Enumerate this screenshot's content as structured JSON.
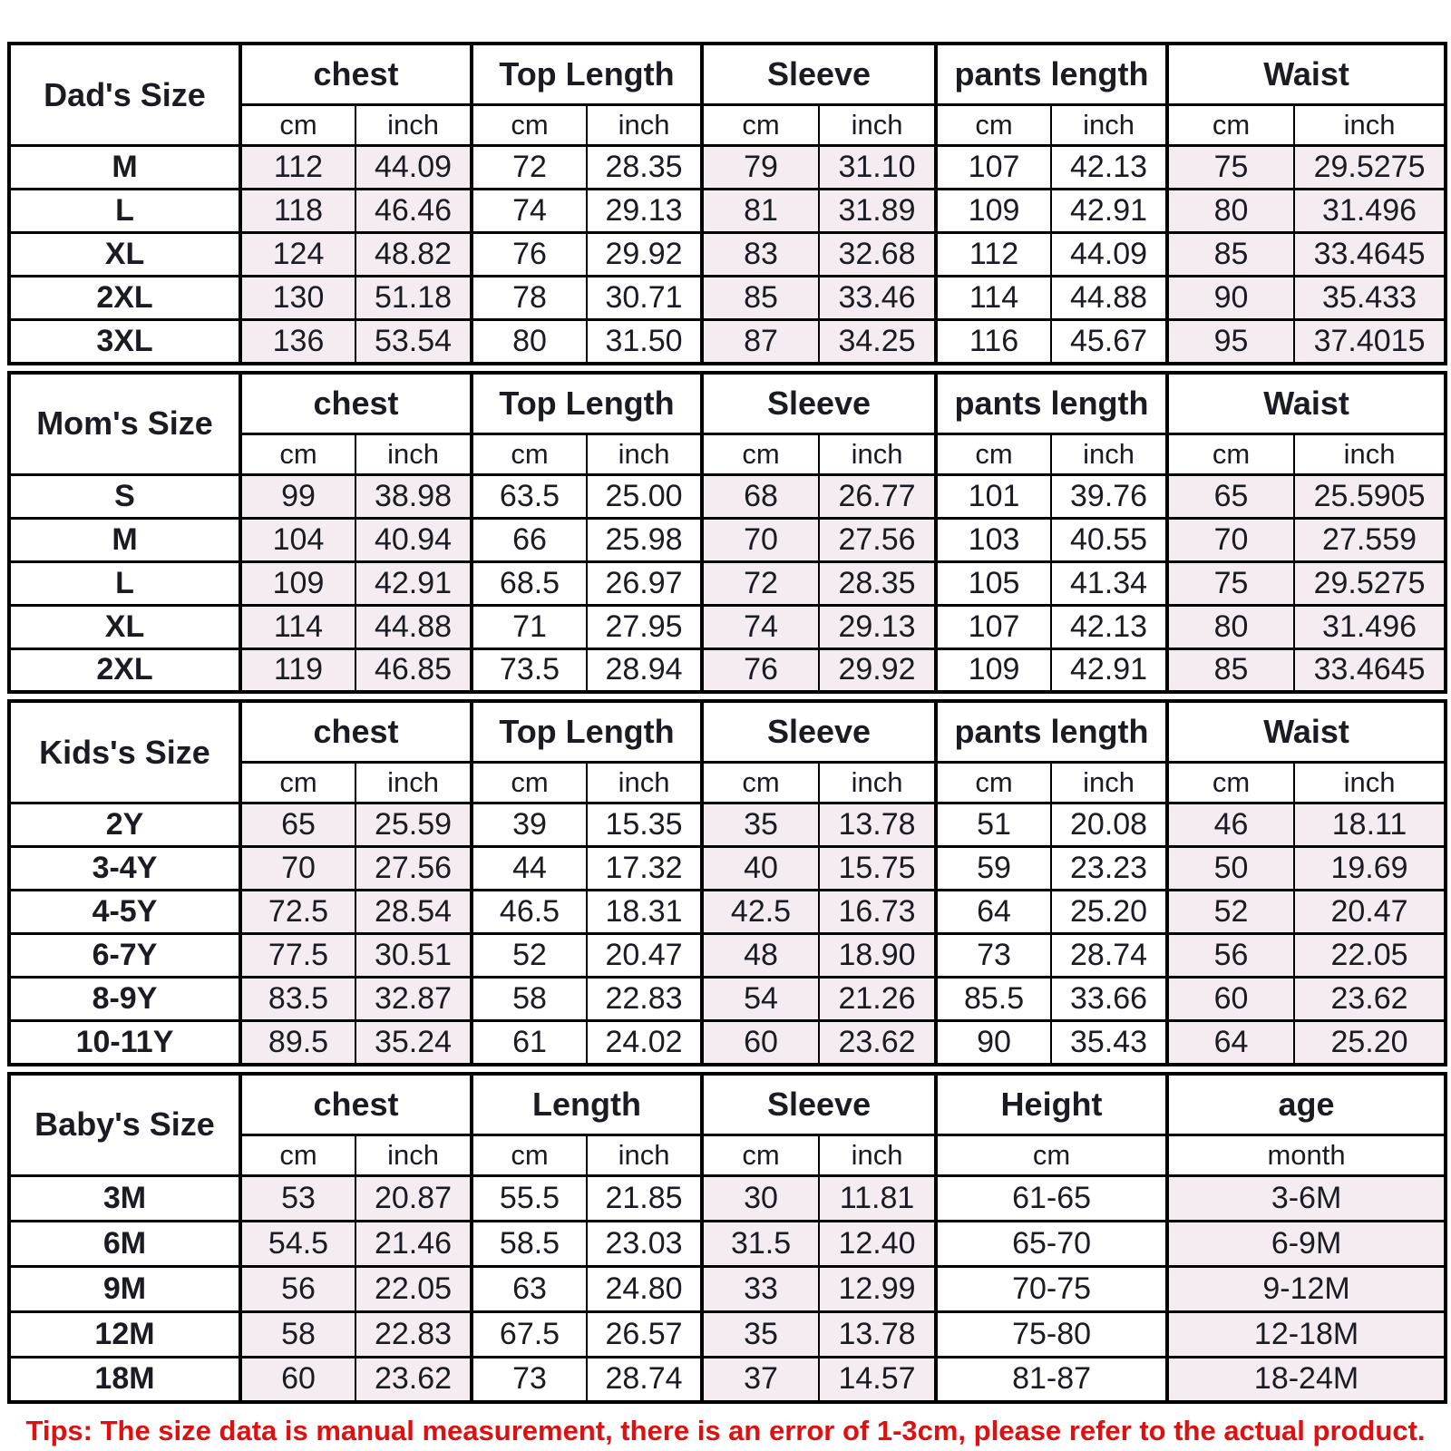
{
  "colors": {
    "shade_pink": "#f5ecf2",
    "text": "#1b1b24",
    "border": "#000000",
    "tips_red": "#dd1111"
  },
  "footer": {
    "tips": "Tips: The size data is manual measurement, there is an error of 1-3cm, please refer to the actual product."
  },
  "chart_data": [
    {
      "type": "table",
      "title": "Dad's Size",
      "column_groups": [
        {
          "name": "chest",
          "units": [
            "cm",
            "inch"
          ]
        },
        {
          "name": "Top Length",
          "units": [
            "cm",
            "inch"
          ]
        },
        {
          "name": "Sleeve",
          "units": [
            "cm",
            "inch"
          ]
        },
        {
          "name": "pants length",
          "units": [
            "cm",
            "inch"
          ]
        },
        {
          "name": "Waist",
          "units": [
            "cm",
            "inch"
          ]
        }
      ],
      "rows": [
        {
          "size": "M",
          "values": [
            "112",
            "44.09",
            "72",
            "28.35",
            "79",
            "31.10",
            "107",
            "42.13",
            "75",
            "29.5275"
          ]
        },
        {
          "size": "L",
          "values": [
            "118",
            "46.46",
            "74",
            "29.13",
            "81",
            "31.89",
            "109",
            "42.91",
            "80",
            "31.496"
          ]
        },
        {
          "size": "XL",
          "values": [
            "124",
            "48.82",
            "76",
            "29.92",
            "83",
            "32.68",
            "112",
            "44.09",
            "85",
            "33.4645"
          ]
        },
        {
          "size": "2XL",
          "values": [
            "130",
            "51.18",
            "78",
            "30.71",
            "85",
            "33.46",
            "114",
            "44.88",
            "90",
            "35.433"
          ]
        },
        {
          "size": "3XL",
          "values": [
            "136",
            "53.54",
            "80",
            "31.50",
            "87",
            "34.25",
            "116",
            "45.67",
            "95",
            "37.4015"
          ]
        }
      ]
    },
    {
      "type": "table",
      "title": "Mom's Size",
      "column_groups": [
        {
          "name": "chest",
          "units": [
            "cm",
            "inch"
          ]
        },
        {
          "name": "Top Length",
          "units": [
            "cm",
            "inch"
          ]
        },
        {
          "name": "Sleeve",
          "units": [
            "cm",
            "inch"
          ]
        },
        {
          "name": "pants length",
          "units": [
            "cm",
            "inch"
          ]
        },
        {
          "name": "Waist",
          "units": [
            "cm",
            "inch"
          ]
        }
      ],
      "rows": [
        {
          "size": "S",
          "values": [
            "99",
            "38.98",
            "63.5",
            "25.00",
            "68",
            "26.77",
            "101",
            "39.76",
            "65",
            "25.5905"
          ]
        },
        {
          "size": "M",
          "values": [
            "104",
            "40.94",
            "66",
            "25.98",
            "70",
            "27.56",
            "103",
            "40.55",
            "70",
            "27.559"
          ]
        },
        {
          "size": "L",
          "values": [
            "109",
            "42.91",
            "68.5",
            "26.97",
            "72",
            "28.35",
            "105",
            "41.34",
            "75",
            "29.5275"
          ]
        },
        {
          "size": "XL",
          "values": [
            "114",
            "44.88",
            "71",
            "27.95",
            "74",
            "29.13",
            "107",
            "42.13",
            "80",
            "31.496"
          ]
        },
        {
          "size": "2XL",
          "values": [
            "119",
            "46.85",
            "73.5",
            "28.94",
            "76",
            "29.92",
            "109",
            "42.91",
            "85",
            "33.4645"
          ]
        }
      ]
    },
    {
      "type": "table",
      "title": "Kids's Size",
      "column_groups": [
        {
          "name": "chest",
          "units": [
            "cm",
            "inch"
          ]
        },
        {
          "name": "Top Length",
          "units": [
            "cm",
            "inch"
          ]
        },
        {
          "name": "Sleeve",
          "units": [
            "cm",
            "inch"
          ]
        },
        {
          "name": "pants length",
          "units": [
            "cm",
            "inch"
          ]
        },
        {
          "name": "Waist",
          "units": [
            "cm",
            "inch"
          ]
        }
      ],
      "rows": [
        {
          "size": "2Y",
          "values": [
            "65",
            "25.59",
            "39",
            "15.35",
            "35",
            "13.78",
            "51",
            "20.08",
            "46",
            "18.11"
          ]
        },
        {
          "size": "3-4Y",
          "values": [
            "70",
            "27.56",
            "44",
            "17.32",
            "40",
            "15.75",
            "59",
            "23.23",
            "50",
            "19.69"
          ]
        },
        {
          "size": "4-5Y",
          "values": [
            "72.5",
            "28.54",
            "46.5",
            "18.31",
            "42.5",
            "16.73",
            "64",
            "25.20",
            "52",
            "20.47"
          ]
        },
        {
          "size": "6-7Y",
          "values": [
            "77.5",
            "30.51",
            "52",
            "20.47",
            "48",
            "18.90",
            "73",
            "28.74",
            "56",
            "22.05"
          ]
        },
        {
          "size": "8-9Y",
          "values": [
            "83.5",
            "32.87",
            "58",
            "22.83",
            "54",
            "21.26",
            "85.5",
            "33.66",
            "60",
            "23.62"
          ]
        },
        {
          "size": "10-11Y",
          "values": [
            "89.5",
            "35.24",
            "61",
            "24.02",
            "60",
            "23.62",
            "90",
            "35.43",
            "64",
            "25.20"
          ]
        }
      ]
    },
    {
      "type": "table",
      "title": "Baby's Size",
      "column_groups": [
        {
          "name": "chest",
          "units": [
            "cm",
            "inch"
          ]
        },
        {
          "name": "Length",
          "units": [
            "cm",
            "inch"
          ]
        },
        {
          "name": "Sleeve",
          "units": [
            "cm",
            "inch"
          ]
        },
        {
          "name": "Height",
          "units": [
            "cm"
          ]
        },
        {
          "name": "age",
          "units": [
            "month"
          ]
        }
      ],
      "rows": [
        {
          "size": "3M",
          "values": [
            "53",
            "20.87",
            "55.5",
            "21.85",
            "30",
            "11.81",
            "61-65",
            "3-6M"
          ]
        },
        {
          "size": "6M",
          "values": [
            "54.5",
            "21.46",
            "58.5",
            "23.03",
            "31.5",
            "12.40",
            "65-70",
            "6-9M"
          ]
        },
        {
          "size": "9M",
          "values": [
            "56",
            "22.05",
            "63",
            "24.80",
            "33",
            "12.99",
            "70-75",
            "9-12M"
          ]
        },
        {
          "size": "12M",
          "values": [
            "58",
            "22.83",
            "67.5",
            "26.57",
            "35",
            "13.78",
            "75-80",
            "12-18M"
          ]
        },
        {
          "size": "18M",
          "values": [
            "60",
            "23.62",
            "73",
            "28.74",
            "37",
            "14.57",
            "81-87",
            "18-24M"
          ]
        }
      ]
    }
  ]
}
